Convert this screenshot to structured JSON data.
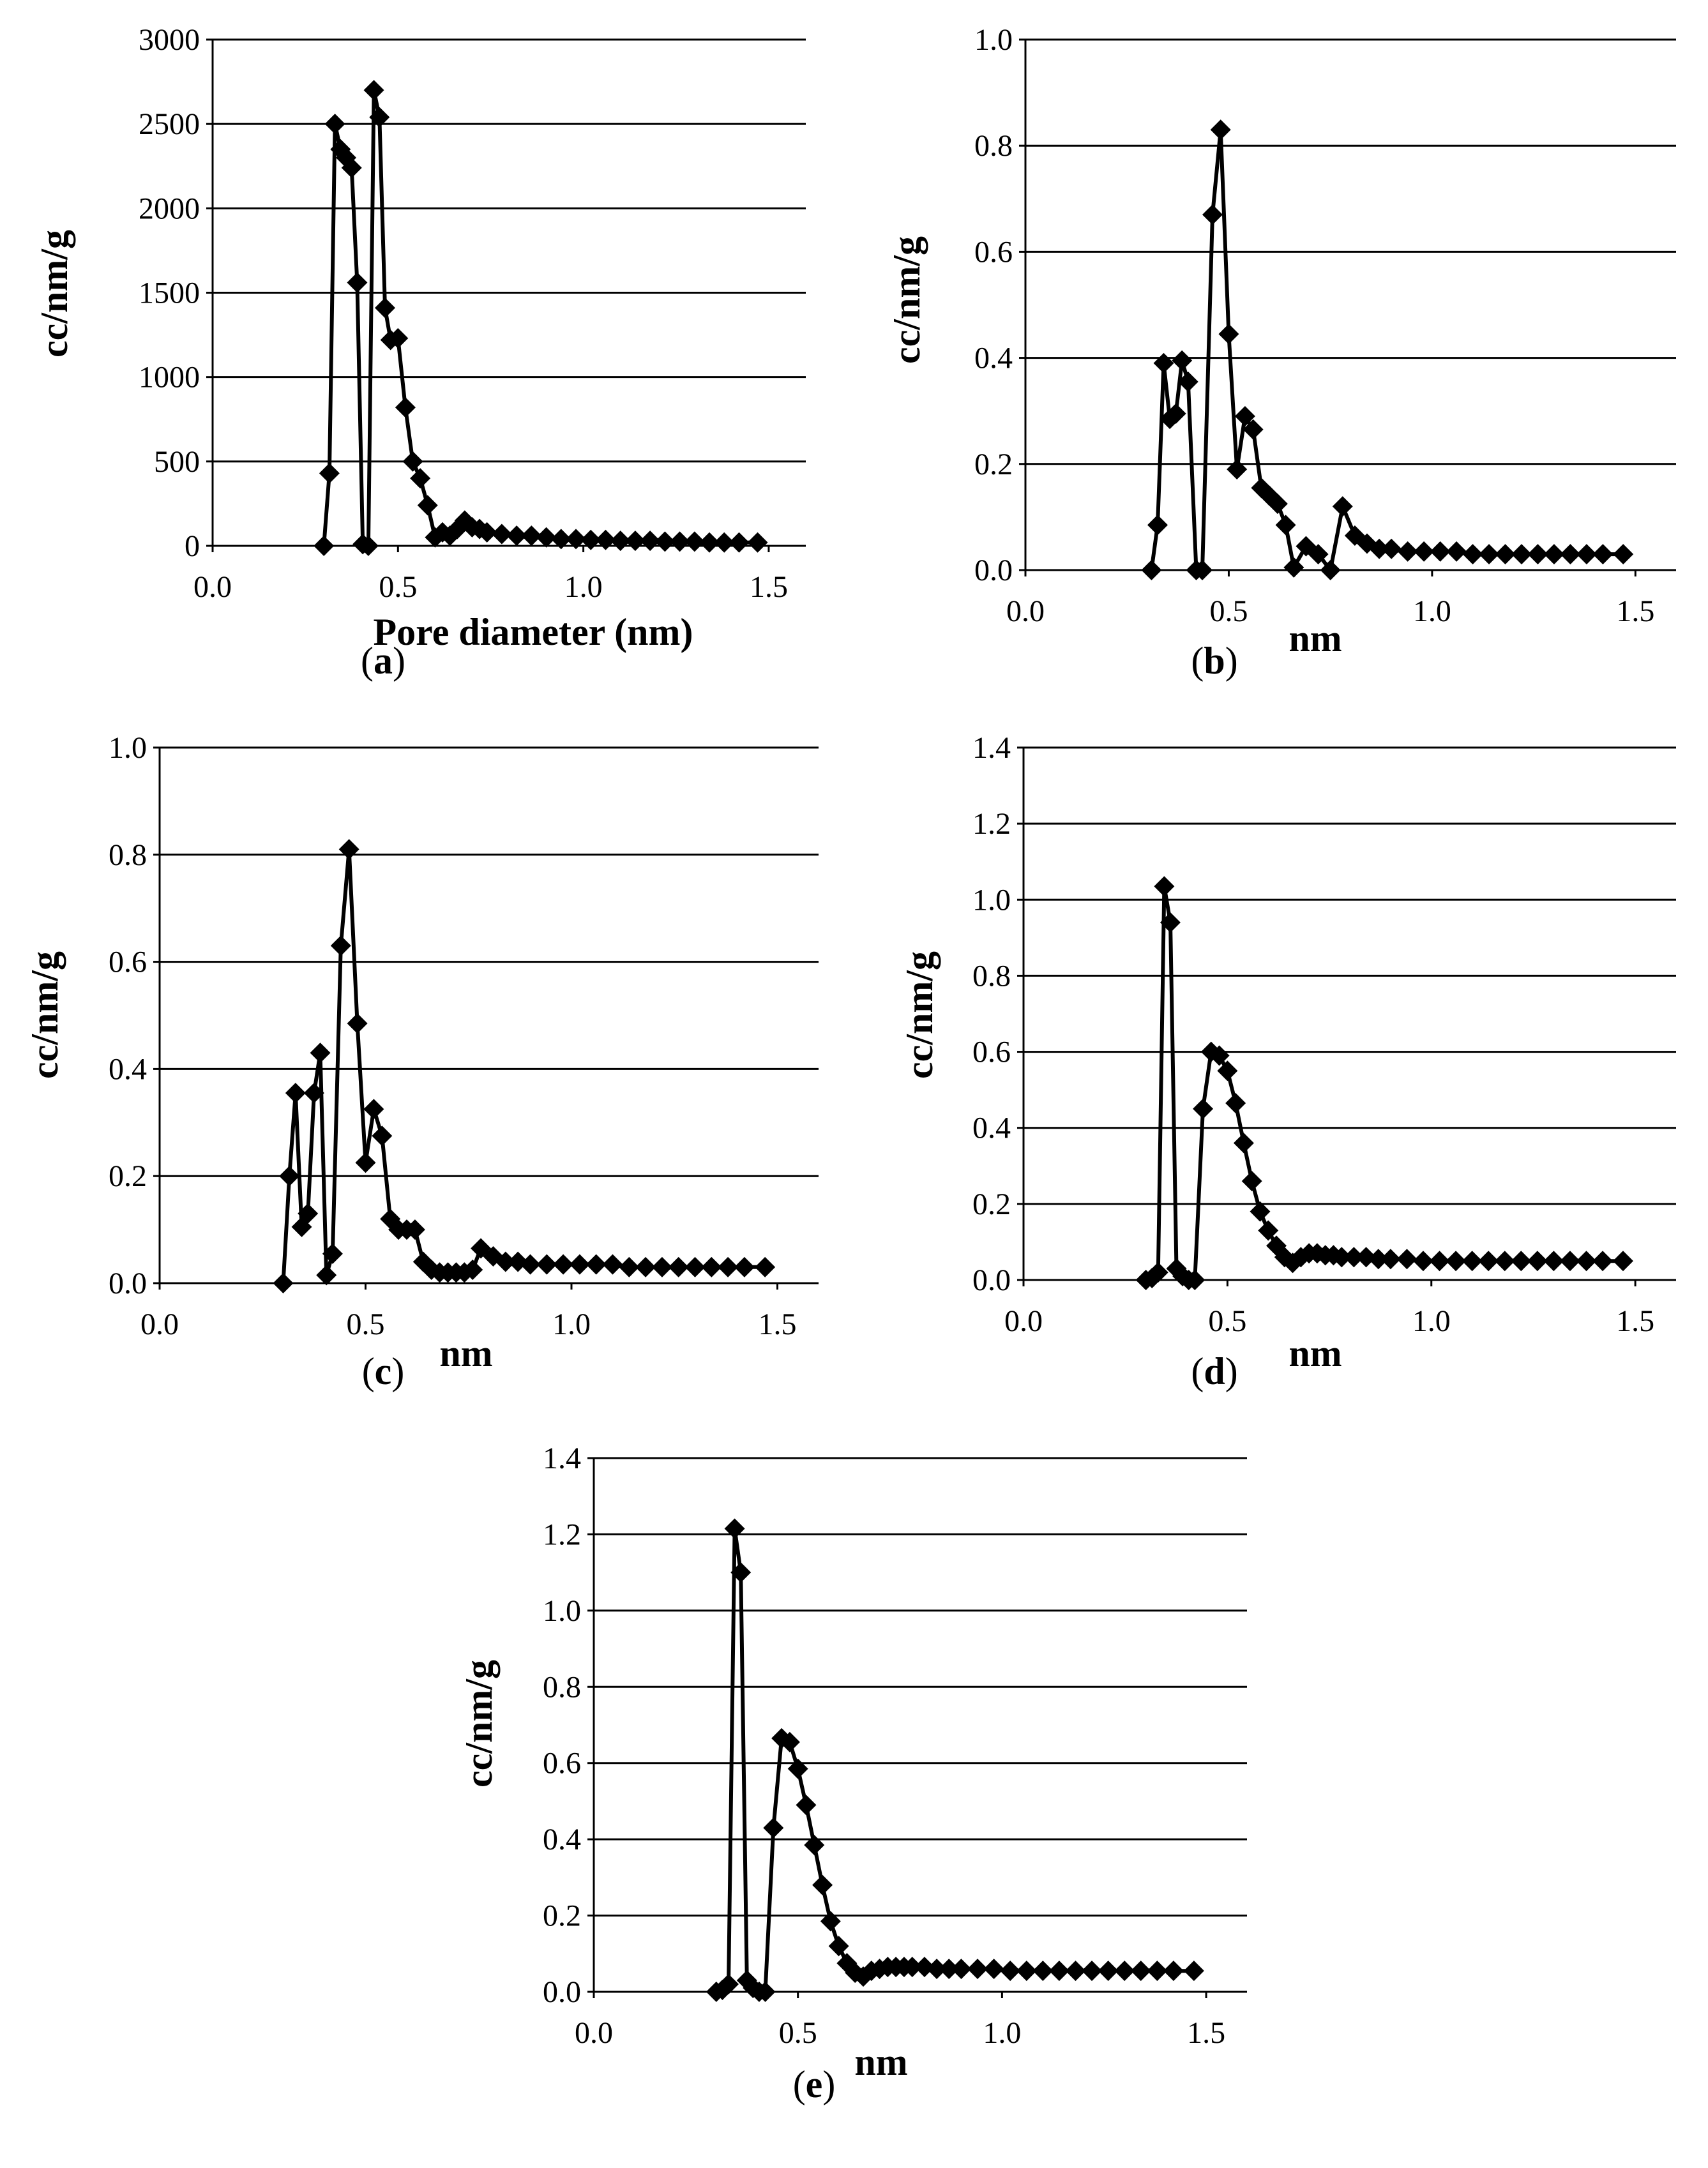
{
  "chart_data": [
    {
      "type": "line",
      "panel": "(a)",
      "panel_letter": "a",
      "title": "",
      "xlabel": "Pore diameter (nm)",
      "ylabel": "cc/nm/g",
      "xlim": [
        0,
        1.6
      ],
      "ylim": [
        0,
        3000
      ],
      "xticks": [
        0,
        0.5,
        1,
        1.5
      ],
      "xtick_labels": [
        "0.0",
        "0.5",
        "1.0",
        "1.5"
      ],
      "yticks": [
        0,
        500,
        1000,
        1500,
        2000,
        2500,
        3000
      ],
      "ytick_labels": [
        "0",
        "500",
        "1000",
        "1500",
        "2000",
        "2500",
        "3000"
      ],
      "grid": "horizontal",
      "marker": "diamond",
      "series": [
        {
          "name": "",
          "x": [
            0.3,
            0.315,
            0.33,
            0.345,
            0.36,
            0.375,
            0.39,
            0.405,
            0.42,
            0.435,
            0.45,
            0.465,
            0.48,
            0.5,
            0.52,
            0.54,
            0.56,
            0.58,
            0.6,
            0.62,
            0.64,
            0.66,
            0.68,
            0.7,
            0.72,
            0.74,
            0.78,
            0.82,
            0.86,
            0.9,
            0.94,
            0.98,
            1.02,
            1.06,
            1.1,
            1.14,
            1.18,
            1.22,
            1.26,
            1.3,
            1.34,
            1.38,
            1.42,
            1.47
          ],
          "y": [
            0,
            430,
            2500,
            2350,
            2300,
            2240,
            1560,
            10,
            0,
            2700,
            2540,
            1410,
            1220,
            1230,
            820,
            500,
            400,
            240,
            50,
            80,
            60,
            100,
            150,
            110,
            100,
            80,
            70,
            60,
            60,
            50,
            40,
            40,
            35,
            35,
            30,
            30,
            30,
            25,
            25,
            25,
            20,
            20,
            20,
            20
          ],
          "x_display": "",
          "y_display": ""
        }
      ]
    },
    {
      "type": "line",
      "panel": "(b)",
      "panel_letter": "b",
      "title": "",
      "xlabel": "nm",
      "ylabel": "cc/nm/g",
      "xlim": [
        0,
        1.6
      ],
      "ylim": [
        0,
        1
      ],
      "xticks": [
        0,
        0.5,
        1,
        1.5
      ],
      "xtick_labels": [
        "0.0",
        "0.5",
        "1.0",
        "1.5"
      ],
      "yticks": [
        0,
        0.2,
        0.4,
        0.6,
        0.8,
        1
      ],
      "ytick_labels": [
        "0.0",
        "0.2",
        "0.4",
        "0.6",
        "0.8",
        "1.0"
      ],
      "grid": "horizontal",
      "marker": "diamond",
      "series": [
        {
          "name": "",
          "x": [
            0.31,
            0.325,
            0.34,
            0.355,
            0.37,
            0.385,
            0.4,
            0.42,
            0.435,
            0.46,
            0.48,
            0.5,
            0.52,
            0.54,
            0.56,
            0.58,
            0.6,
            0.62,
            0.64,
            0.66,
            0.69,
            0.72,
            0.75,
            0.78,
            0.81,
            0.84,
            0.87,
            0.9,
            0.94,
            0.98,
            1.02,
            1.06,
            1.1,
            1.14,
            1.18,
            1.22,
            1.26,
            1.3,
            1.34,
            1.38,
            1.42,
            1.47
          ],
          "y": [
            0,
            0.085,
            0.39,
            0.285,
            0.295,
            0.395,
            0.355,
            0,
            0,
            0.67,
            0.83,
            0.445,
            0.19,
            0.29,
            0.265,
            0.155,
            0.14,
            0.125,
            0.085,
            0.005,
            0.045,
            0.03,
            0.0,
            0.12,
            0.065,
            0.05,
            0.04,
            0.04,
            0.035,
            0.035,
            0.035,
            0.035,
            0.03,
            0.03,
            0.03,
            0.03,
            0.03,
            0.03,
            0.03,
            0.03,
            0.03,
            0.03
          ]
        }
      ]
    },
    {
      "type": "line",
      "panel": "(c)",
      "panel_letter": "c",
      "title": "",
      "xlabel": "nm",
      "ylabel": "cc/nm/g",
      "xlim": [
        0,
        1.6
      ],
      "ylim": [
        0,
        1
      ],
      "xticks": [
        0,
        0.5,
        1,
        1.5
      ],
      "xtick_labels": [
        "0.0",
        "0.5",
        "1.0",
        "1.5"
      ],
      "yticks": [
        0,
        0.2,
        0.4,
        0.6,
        0.8,
        1
      ],
      "ytick_labels": [
        "0.0",
        "0.2",
        "0.4",
        "0.6",
        "0.8",
        "1.0"
      ],
      "grid": "horizontal",
      "marker": "diamond",
      "series": [
        {
          "name": "",
          "x": [
            0.3,
            0.315,
            0.33,
            0.345,
            0.36,
            0.375,
            0.39,
            0.405,
            0.42,
            0.44,
            0.46,
            0.48,
            0.5,
            0.52,
            0.54,
            0.56,
            0.58,
            0.6,
            0.62,
            0.64,
            0.66,
            0.68,
            0.7,
            0.72,
            0.74,
            0.76,
            0.78,
            0.81,
            0.84,
            0.87,
            0.9,
            0.94,
            0.98,
            1.02,
            1.06,
            1.1,
            1.14,
            1.18,
            1.22,
            1.26,
            1.3,
            1.34,
            1.38,
            1.42,
            1.47
          ],
          "y": [
            0,
            0.2,
            0.355,
            0.105,
            0.13,
            0.355,
            0.43,
            0.015,
            0.055,
            0.63,
            0.81,
            0.485,
            0.225,
            0.325,
            0.275,
            0.12,
            0.1,
            0.1,
            0.1,
            0.04,
            0.025,
            0.02,
            0.02,
            0.02,
            0.02,
            0.025,
            0.065,
            0.05,
            0.04,
            0.04,
            0.035,
            0.035,
            0.035,
            0.035,
            0.035,
            0.035,
            0.03,
            0.03,
            0.03,
            0.03,
            0.03,
            0.03,
            0.03,
            0.03,
            0.03
          ]
        }
      ]
    },
    {
      "type": "line",
      "panel": "(d)",
      "panel_letter": "d",
      "title": "",
      "xlabel": "nm",
      "ylabel": "cc/nm/g",
      "xlim": [
        0,
        1.6
      ],
      "ylim": [
        0,
        1.4
      ],
      "xticks": [
        0,
        0.5,
        1,
        1.5
      ],
      "xtick_labels": [
        "0.0",
        "0.5",
        "1.0",
        "1.5"
      ],
      "yticks": [
        0,
        0.2,
        0.4,
        0.6,
        0.8,
        1,
        1.2,
        1.4
      ],
      "ytick_labels": [
        "0.0",
        "0.2",
        "0.4",
        "0.6",
        "0.8",
        "1.0",
        "1.2",
        "1.4"
      ],
      "grid": "horizontal",
      "marker": "diamond",
      "series": [
        {
          "name": "",
          "x": [
            0.3,
            0.315,
            0.33,
            0.345,
            0.36,
            0.375,
            0.39,
            0.405,
            0.42,
            0.44,
            0.46,
            0.48,
            0.5,
            0.52,
            0.54,
            0.56,
            0.58,
            0.6,
            0.62,
            0.64,
            0.66,
            0.68,
            0.7,
            0.72,
            0.74,
            0.76,
            0.78,
            0.81,
            0.84,
            0.87,
            0.9,
            0.94,
            0.98,
            1.02,
            1.06,
            1.1,
            1.14,
            1.18,
            1.22,
            1.26,
            1.3,
            1.34,
            1.38,
            1.42,
            1.47
          ],
          "y": [
            0,
            0.005,
            0.02,
            1.035,
            0.94,
            0.03,
            0.01,
            0.0,
            0.0,
            0.45,
            0.6,
            0.59,
            0.55,
            0.465,
            0.36,
            0.26,
            0.18,
            0.13,
            0.09,
            0.06,
            0.045,
            0.06,
            0.07,
            0.07,
            0.065,
            0.065,
            0.06,
            0.06,
            0.06,
            0.055,
            0.055,
            0.055,
            0.05,
            0.05,
            0.05,
            0.05,
            0.05,
            0.05,
            0.05,
            0.05,
            0.05,
            0.05,
            0.05,
            0.05,
            0.05
          ]
        }
      ]
    },
    {
      "type": "line",
      "panel": "(e)",
      "panel_letter": "e",
      "title": "",
      "xlabel": "nm",
      "ylabel": "cc/nm/g",
      "xlim": [
        0,
        1.6
      ],
      "ylim": [
        0,
        1.4
      ],
      "xticks": [
        0,
        0.5,
        1,
        1.5
      ],
      "xtick_labels": [
        "0.0",
        "0.5",
        "1.0",
        "1.5"
      ],
      "yticks": [
        0,
        0.2,
        0.4,
        0.6,
        0.8,
        1,
        1.2,
        1.4
      ],
      "ytick_labels": [
        "0.0",
        "0.2",
        "0.4",
        "0.6",
        "0.8",
        "1.0",
        "1.2",
        "1.4"
      ],
      "grid": "horizontal",
      "marker": "diamond",
      "series": [
        {
          "name": "",
          "x": [
            0.3,
            0.315,
            0.33,
            0.345,
            0.36,
            0.375,
            0.39,
            0.405,
            0.42,
            0.44,
            0.46,
            0.48,
            0.5,
            0.52,
            0.54,
            0.56,
            0.58,
            0.6,
            0.62,
            0.64,
            0.66,
            0.68,
            0.7,
            0.72,
            0.74,
            0.76,
            0.78,
            0.81,
            0.84,
            0.87,
            0.9,
            0.94,
            0.98,
            1.02,
            1.06,
            1.1,
            1.14,
            1.18,
            1.22,
            1.26,
            1.3,
            1.34,
            1.38,
            1.42,
            1.47
          ],
          "y": [
            0,
            0.005,
            0.02,
            1.215,
            1.1,
            0.03,
            0.01,
            0.0,
            0.0,
            0.43,
            0.665,
            0.655,
            0.585,
            0.49,
            0.385,
            0.28,
            0.185,
            0.12,
            0.075,
            0.05,
            0.04,
            0.055,
            0.06,
            0.065,
            0.065,
            0.065,
            0.065,
            0.065,
            0.06,
            0.06,
            0.06,
            0.06,
            0.06,
            0.055,
            0.055,
            0.055,
            0.055,
            0.055,
            0.055,
            0.055,
            0.055,
            0.055,
            0.055,
            0.055,
            0.055
          ]
        }
      ]
    }
  ],
  "colors": {
    "line": "#000000",
    "marker": "#000000",
    "grid": "#000000",
    "background": "#ffffff"
  }
}
